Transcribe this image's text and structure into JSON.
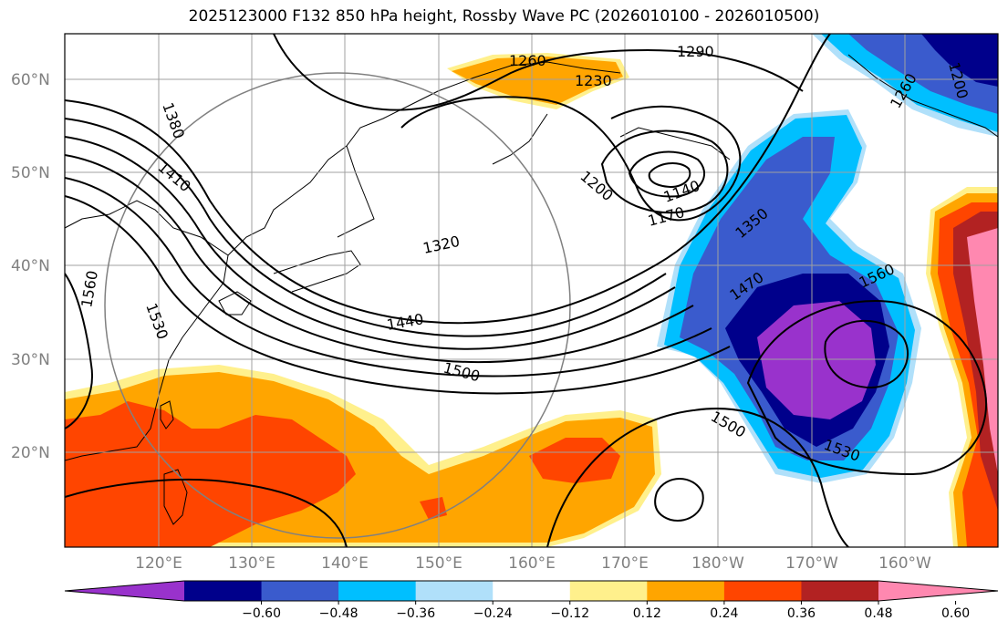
{
  "title": "2025123000 F132 850 hPa height, Rossby Wave PC (2026010100 - 2026010500)",
  "lat_labels": [
    "60°N",
    "50°N",
    "40°N",
    "30°N",
    "20°N"
  ],
  "lon_labels": [
    "120°E",
    "130°E",
    "140°E",
    "150°E",
    "160°E",
    "170°E",
    "180°W",
    "170°W",
    "160°W"
  ],
  "contour_labels": [
    "1260",
    "1230",
    "1290",
    "1260",
    "1200",
    "1380",
    "1410",
    "1200",
    "1140",
    "1170",
    "1350",
    "1320",
    "1470",
    "1560",
    "1560",
    "1440",
    "1500",
    "1500",
    "1530",
    "1530"
  ],
  "colorbar": {
    "ticks": [
      "−0.60",
      "−0.48",
      "−0.36",
      "−0.24",
      "−0.12",
      "0.12",
      "0.24",
      "0.36",
      "0.48",
      "0.60"
    ],
    "colors": [
      "#9932cc",
      "#00008b",
      "#3a5bcd",
      "#00bfff",
      "#b0e0fa",
      "#ffffff",
      "#fff08c",
      "#ffa500",
      "#ff4500",
      "#b22222",
      "#ff88b0"
    ]
  }
}
